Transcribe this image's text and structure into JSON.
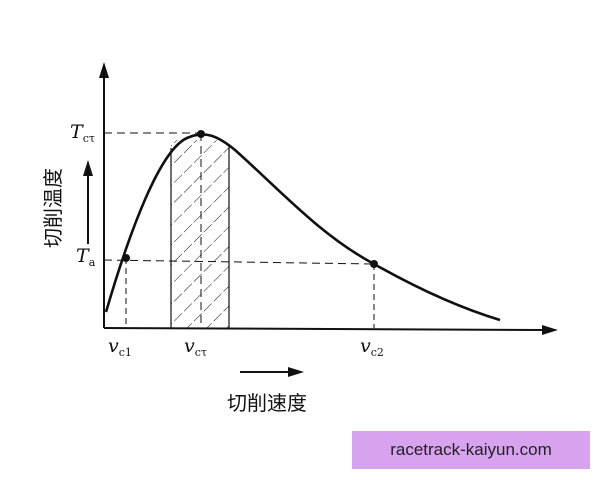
{
  "diagram": {
    "y_axis_label": "切削温度",
    "x_axis_label": "切削速度",
    "y_marks": [
      {
        "main": "T",
        "sub": "cτ"
      },
      {
        "main": "T",
        "sub": "a"
      }
    ],
    "x_marks": [
      {
        "main": "v",
        "sub": "c1"
      },
      {
        "main": "v",
        "sub": "cτ"
      },
      {
        "main": "v",
        "sub": "c2"
      }
    ]
  },
  "watermark": {
    "text": "racetrack-kaiyun.com"
  }
}
